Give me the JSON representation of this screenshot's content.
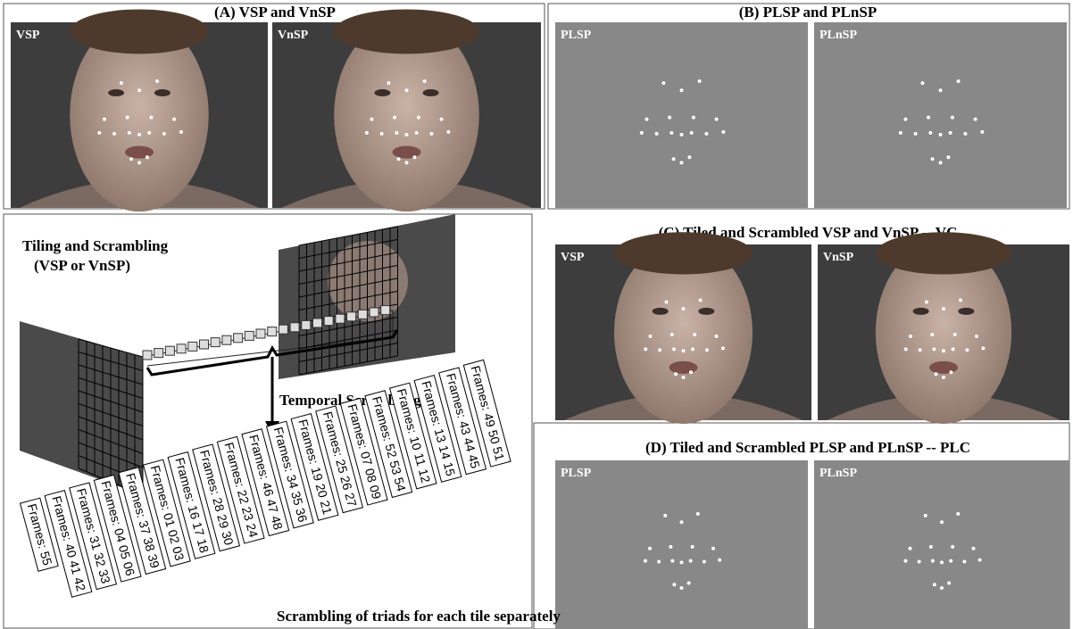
{
  "panels": {
    "a": {
      "title": "(A) VSP and VnSP",
      "left_label": "VSP",
      "right_label": "VnSP"
    },
    "b": {
      "title": "(B) PLSP and PLnSP",
      "left_label": "PLSP",
      "right_label": "PLnSP"
    },
    "c": {
      "title": "(C) Tiled and Scrambled VSP and VnSP -- VC",
      "left_label": "VSP",
      "right_label": "VnSP"
    },
    "d": {
      "title": "(D) Tiled and Scrambled PLSP and PLnSP -- PLC",
      "left_label": "PLSP",
      "right_label": "PLnSP"
    }
  },
  "diagram": {
    "title_line1": "Tiling and Scrambling",
    "title_line2": "(VSP or VnSP)",
    "temporal_label": "Temporal Scrambling",
    "frames": [
      "Frames: 55",
      "Frames: 40 41 42",
      "Frames: 31 32 33",
      "Frames: 04 05 06",
      "Frames: 37 38 39",
      "Frames: 01 02 03",
      "Frames: 16 17 18",
      "Frames: 28 29 30",
      "Frames: 22 23 24",
      "Frames: 46 47 48",
      "Frames: 34 35 36",
      "Frames: 19 20 21",
      "Frames: 25 26 27",
      "Frames: 07 08 09",
      "Frames: 52 53 54",
      "Frames: 10 11 12",
      "Frames: 13 14 15",
      "Frames: 43 44 45",
      "Frames: 49 50 51"
    ],
    "caption": "Scrambling of triads for each tile separately"
  }
}
